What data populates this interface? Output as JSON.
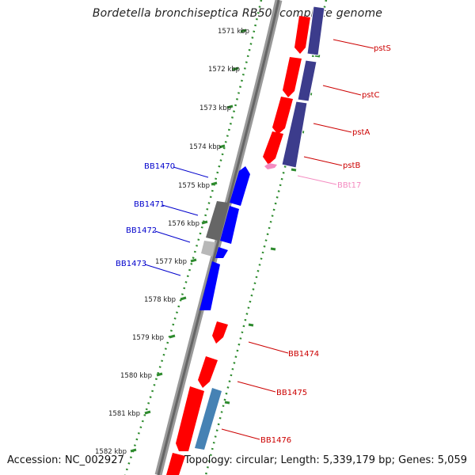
{
  "title": "Bordetella bronchiseptica RB50, complete genome",
  "footer": {
    "accession": "Accession: NC_002927",
    "summary": "Topology: circular; Length: 5,339,179 bp; Genes: 5,059"
  },
  "scale_ticks": [
    "1571 kbp",
    "1572 kbp",
    "1573 kbp",
    "1574 kbp",
    "1575 kbp",
    "1576 kbp",
    "1577 kbp",
    "1578 kbp",
    "1579 kbp",
    "1580 kbp",
    "1581 kbp",
    "1582 kbp"
  ],
  "genes_left": [
    {
      "name": "BB1470",
      "color": "#0000cc"
    },
    {
      "name": "BB1471",
      "color": "#0000cc"
    },
    {
      "name": "BB1472",
      "color": "#0000cc"
    },
    {
      "name": "BB1473",
      "color": "#0000cc"
    }
  ],
  "genes_right": [
    {
      "name": "pstS",
      "color": "#cc0000"
    },
    {
      "name": "pstC",
      "color": "#cc0000"
    },
    {
      "name": "pstA",
      "color": "#cc0000"
    },
    {
      "name": "pstB",
      "color": "#cc0000"
    },
    {
      "name": "BBt17",
      "color": "#f48ac0"
    },
    {
      "name": "BB1474",
      "color": "#cc0000"
    },
    {
      "name": "BB1475",
      "color": "#cc0000"
    },
    {
      "name": "BB1476",
      "color": "#cc0000"
    }
  ],
  "colors": {
    "forward_cds": "#ff0000",
    "reverse_cds": "#0000ff",
    "rna": "#f48ac0",
    "other_gray": "#666666",
    "light_gray": "#b8b8b8",
    "steelblue": "#4682b4",
    "purple": "#3c3c8c",
    "tick": "#2e8b2e"
  }
}
